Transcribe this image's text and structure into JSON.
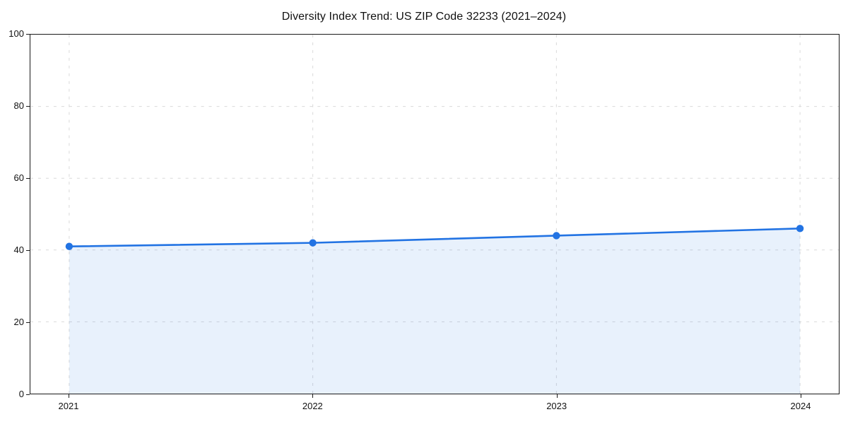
{
  "chart_data": {
    "type": "line",
    "title": "Diversity Index Trend: US ZIP Code 32233 (2021–2024)",
    "categories": [
      "2021",
      "2022",
      "2023",
      "2024"
    ],
    "series": [
      {
        "name": "Diversity Index",
        "values": [
          41,
          42,
          44,
          46
        ]
      }
    ],
    "xlabel": "",
    "ylabel": "",
    "ylim": [
      0,
      100
    ],
    "yticks": [
      0,
      20,
      40,
      60,
      80,
      100
    ],
    "grid": true,
    "grid_style": "dashed",
    "legend": false,
    "area_fill": true,
    "marker": "circle",
    "colors": {
      "line": "#2273e3",
      "marker": "#2273e3",
      "area": "rgba(34,115,227,0.10)",
      "grid": "#d9d9d9",
      "spine": "#1a1a1a",
      "text": "#111111"
    }
  }
}
